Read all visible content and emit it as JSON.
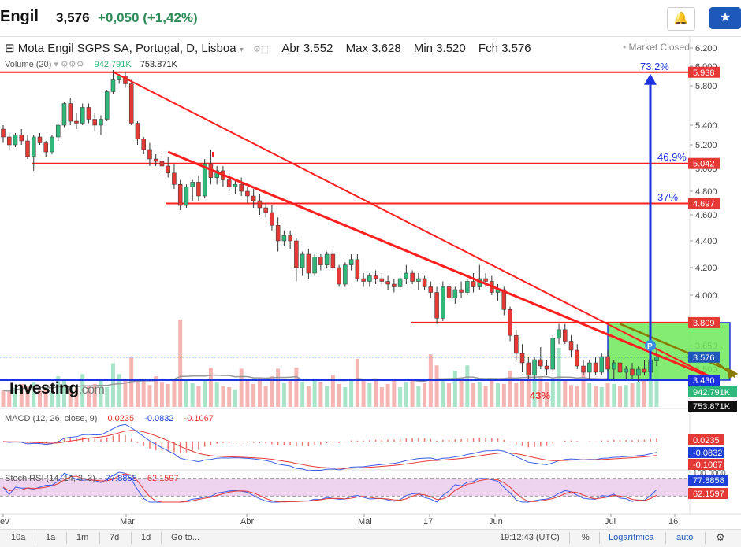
{
  "header": {
    "symbol": "Engil",
    "price": "3,576",
    "change": "+0,050",
    "change_pct": "(+1,42%)"
  },
  "chart_info": {
    "title": "Mota Engil SGPS SA, Portugal, D, Lisboa",
    "open_label": "Abr",
    "open": "3.552",
    "high_label": "Max",
    "high": "3.628",
    "low_label": "Min",
    "low": "3.520",
    "close_label": "Fch",
    "close": "3.576",
    "market_status": "Market Closed",
    "volume_label": "Volume (20)",
    "volume_value": "942.791K",
    "volume_ma": "753.871K"
  },
  "macd": {
    "label": "MACD (12, 26, close, 9)",
    "v1": "0.0235",
    "v2": "-0.0832",
    "v3": "-0.1067"
  },
  "stoch": {
    "label": "Stoch RSI (14, 14, 3, 3)",
    "v1": "77.8858",
    "v2": "62.1597"
  },
  "branding": {
    "logo": "Investing",
    "logo_suffix": ".com"
  },
  "annotations": {
    "pct_73": "73,2%",
    "pct_469": "46,9%",
    "pct_37": "37%",
    "pct_43": "43%",
    "marker": "P"
  },
  "bottom_bar": {
    "timeframes": [
      "10a",
      "1a",
      "1m",
      "7d",
      "1d"
    ],
    "goto": "Go to...",
    "time": "19:12:43 (UTC)",
    "percent": "%",
    "log": "Logarítmica",
    "auto": "auto"
  },
  "colors": {
    "up": "#2fb87a",
    "down": "#e53935",
    "resistance": "#ff1f1f",
    "target": "#1e33e0",
    "box": "#6ee85a",
    "wedge": "#8a7a00"
  },
  "chart_data": {
    "type": "candlestick",
    "x_ticks": [
      "ev",
      "Mar",
      "Abr",
      "Mai",
      "17",
      "Jun",
      "Jul",
      "16"
    ],
    "y_ticks": [
      6.2,
      6.0,
      5.8,
      5.4,
      5.2,
      5.0,
      4.8,
      4.6,
      4.4,
      4.2,
      4.0,
      3.65,
      3.5,
      3.4
    ],
    "ylim": [
      3.29,
      6.2
    ],
    "price_labels": [
      {
        "value": 5.938,
        "text": "5.938",
        "color": "#e53935"
      },
      {
        "value": 5.042,
        "text": "5.042",
        "color": "#e53935"
      },
      {
        "value": 4.697,
        "text": "4.697",
        "color": "#e53935"
      },
      {
        "value": 3.809,
        "text": "3.809",
        "color": "#e53935"
      },
      {
        "value": 3.576,
        "text": "3.576",
        "color": "#1e58b8"
      },
      {
        "value": 3.43,
        "text": "3.430",
        "color": "#1e33e0"
      }
    ],
    "volume_labels": [
      {
        "text": "942.791K",
        "color": "#2fb87a"
      },
      {
        "text": "753.871K",
        "color": "#111111"
      }
    ],
    "macd_labels": [
      {
        "value": 0.0235,
        "text": "0.0235",
        "color": "#e53935"
      },
      {
        "value": -0.0832,
        "text": "-0.0832",
        "color": "#1e40d8"
      },
      {
        "value": -0.1067,
        "text": "-0.1067",
        "color": "#e53935"
      }
    ],
    "stoch_labels": [
      {
        "value": 100,
        "text": "100.0000",
        "color": "#555555"
      },
      {
        "value": 77.8858,
        "text": "77.8858",
        "color": "#1e40d8"
      },
      {
        "value": 62.1597,
        "text": "62.1597",
        "color": "#e53935"
      }
    ],
    "horizontal_lines": [
      5.938,
      5.042,
      4.697,
      3.809,
      3.43
    ],
    "candles_ohlc": [
      [
        5.36,
        5.4,
        5.22,
        5.28
      ],
      [
        5.28,
        5.32,
        5.16,
        5.2
      ],
      [
        5.2,
        5.32,
        5.18,
        5.3
      ],
      [
        5.3,
        5.36,
        5.2,
        5.24
      ],
      [
        5.24,
        5.3,
        5.08,
        5.1
      ],
      [
        5.1,
        5.3,
        4.98,
        5.28
      ],
      [
        5.28,
        5.32,
        5.2,
        5.22
      ],
      [
        5.22,
        5.24,
        5.1,
        5.14
      ],
      [
        5.14,
        5.3,
        5.12,
        5.28
      ],
      [
        5.28,
        5.42,
        5.24,
        5.4
      ],
      [
        5.4,
        5.64,
        5.38,
        5.62
      ],
      [
        5.62,
        5.68,
        5.4,
        5.44
      ],
      [
        5.44,
        5.52,
        5.36,
        5.42
      ],
      [
        5.42,
        5.62,
        5.4,
        5.58
      ],
      [
        5.58,
        5.62,
        5.42,
        5.46
      ],
      [
        5.46,
        5.52,
        5.34,
        5.4
      ],
      [
        5.4,
        5.5,
        5.3,
        5.46
      ],
      [
        5.46,
        5.76,
        5.44,
        5.74
      ],
      [
        5.74,
        5.96,
        5.72,
        5.86
      ],
      [
        5.86,
        5.92,
        5.82,
        5.9
      ],
      [
        5.9,
        5.94,
        5.78,
        5.82
      ],
      [
        5.82,
        5.86,
        5.4,
        5.42
      ],
      [
        5.42,
        5.44,
        5.2,
        5.26
      ],
      [
        5.26,
        5.28,
        5.12,
        5.16
      ],
      [
        5.16,
        5.22,
        5.02,
        5.08
      ],
      [
        5.08,
        5.12,
        5.02,
        5.06
      ],
      [
        5.06,
        5.14,
        4.98,
        5.02
      ],
      [
        5.02,
        5.1,
        4.92,
        4.96
      ],
      [
        4.96,
        5.04,
        4.82,
        4.86
      ],
      [
        4.86,
        4.9,
        4.64,
        4.68
      ],
      [
        4.68,
        4.86,
        4.66,
        4.84
      ],
      [
        4.84,
        4.9,
        4.72,
        4.88
      ],
      [
        4.88,
        4.94,
        4.72,
        4.76
      ],
      [
        4.76,
        5.08,
        4.74,
        5.04
      ],
      [
        5.04,
        5.16,
        4.86,
        4.92
      ],
      [
        4.92,
        5.02,
        4.86,
        4.98
      ],
      [
        4.98,
        5.02,
        4.84,
        4.9
      ],
      [
        4.9,
        4.96,
        4.8,
        4.84
      ],
      [
        4.84,
        4.9,
        4.78,
        4.86
      ],
      [
        4.86,
        4.92,
        4.76,
        4.8
      ],
      [
        4.8,
        4.84,
        4.7,
        4.76
      ],
      [
        4.76,
        4.82,
        4.66,
        4.72
      ],
      [
        4.72,
        4.78,
        4.6,
        4.66
      ],
      [
        4.66,
        4.7,
        4.58,
        4.62
      ],
      [
        4.62,
        4.68,
        4.48,
        4.52
      ],
      [
        4.52,
        4.58,
        4.32,
        4.4
      ],
      [
        4.4,
        4.48,
        4.36,
        4.44
      ],
      [
        4.44,
        4.48,
        4.34,
        4.4
      ],
      [
        4.4,
        4.42,
        4.1,
        4.2
      ],
      [
        4.2,
        4.32,
        4.14,
        4.3
      ],
      [
        4.3,
        4.34,
        4.12,
        4.16
      ],
      [
        4.16,
        4.3,
        4.14,
        4.28
      ],
      [
        4.28,
        4.3,
        4.18,
        4.22
      ],
      [
        4.22,
        4.32,
        4.2,
        4.3
      ],
      [
        4.3,
        4.34,
        4.18,
        4.2
      ],
      [
        4.2,
        4.22,
        4.06,
        4.08
      ],
      [
        4.08,
        4.24,
        4.06,
        4.22
      ],
      [
        4.22,
        4.3,
        4.18,
        4.26
      ],
      [
        4.26,
        4.3,
        4.1,
        4.12
      ],
      [
        4.12,
        4.16,
        4.06,
        4.1
      ],
      [
        4.1,
        4.16,
        4.06,
        4.14
      ],
      [
        4.14,
        4.18,
        4.08,
        4.12
      ],
      [
        4.12,
        4.16,
        4.06,
        4.1
      ],
      [
        4.1,
        4.14,
        4.04,
        4.08
      ],
      [
        4.08,
        4.12,
        4.02,
        4.06
      ],
      [
        4.06,
        4.14,
        4.04,
        4.12
      ],
      [
        4.12,
        4.22,
        4.08,
        4.16
      ],
      [
        4.16,
        4.18,
        4.08,
        4.1
      ],
      [
        4.1,
        4.16,
        4.04,
        4.12
      ],
      [
        4.12,
        4.14,
        4.04,
        4.06
      ],
      [
        4.06,
        4.1,
        3.98,
        4.02
      ],
      [
        4.02,
        4.06,
        3.8,
        3.84
      ],
      [
        3.84,
        4.1,
        3.82,
        4.06
      ],
      [
        4.06,
        4.08,
        3.96,
        3.98
      ],
      [
        3.98,
        4.06,
        3.94,
        4.04
      ],
      [
        4.04,
        4.1,
        3.98,
        4.02
      ],
      [
        4.02,
        4.12,
        4.0,
        4.1
      ],
      [
        4.1,
        4.16,
        4.02,
        4.06
      ],
      [
        4.06,
        4.22,
        4.04,
        4.12
      ],
      [
        4.12,
        4.16,
        4.06,
        4.1
      ],
      [
        4.1,
        4.14,
        4.0,
        4.02
      ],
      [
        4.02,
        4.08,
        3.96,
        4.04
      ],
      [
        4.04,
        4.06,
        3.86,
        3.9
      ],
      [
        3.9,
        3.92,
        3.68,
        3.72
      ],
      [
        3.72,
        3.76,
        3.56,
        3.6
      ],
      [
        3.6,
        3.66,
        3.48,
        3.54
      ],
      [
        3.54,
        3.58,
        3.44,
        3.46
      ],
      [
        3.46,
        3.58,
        3.44,
        3.56
      ],
      [
        3.56,
        3.64,
        3.5,
        3.52
      ],
      [
        3.52,
        3.56,
        3.46,
        3.5
      ],
      [
        3.5,
        3.72,
        3.48,
        3.7
      ],
      [
        3.7,
        3.8,
        3.66,
        3.76
      ],
      [
        3.76,
        3.8,
        3.66,
        3.68
      ],
      [
        3.68,
        3.72,
        3.58,
        3.62
      ],
      [
        3.62,
        3.66,
        3.5,
        3.52
      ],
      [
        3.52,
        3.56,
        3.46,
        3.48
      ],
      [
        3.48,
        3.56,
        3.44,
        3.54
      ],
      [
        3.54,
        3.58,
        3.46,
        3.48
      ],
      [
        3.48,
        3.6,
        3.46,
        3.58
      ],
      [
        3.58,
        3.62,
        3.48,
        3.5
      ],
      [
        3.5,
        3.56,
        3.44,
        3.54
      ],
      [
        3.54,
        3.56,
        3.46,
        3.48
      ],
      [
        3.48,
        3.52,
        3.44,
        3.5
      ],
      [
        3.5,
        3.54,
        3.44,
        3.46
      ],
      [
        3.46,
        3.52,
        3.42,
        3.5
      ],
      [
        3.5,
        3.56,
        3.46,
        3.48
      ],
      [
        3.48,
        3.58,
        3.46,
        3.56
      ],
      [
        3.552,
        3.628,
        3.52,
        3.576
      ]
    ],
    "volume_k": [
      300,
      280,
      350,
      420,
      380,
      460,
      300,
      330,
      290,
      560,
      480,
      300,
      340,
      600,
      380,
      420,
      520,
      360,
      800,
      600,
      500,
      900,
      500,
      520,
      400,
      560,
      460,
      420,
      520,
      1600,
      480,
      440,
      380,
      500,
      720,
      460,
      380,
      360,
      320,
      700,
      480,
      420,
      520,
      380,
      560,
      700,
      440,
      500,
      720,
      460,
      380,
      520,
      460,
      380,
      580,
      420,
      360,
      520,
      880,
      480,
      440,
      520,
      360,
      420,
      520,
      360,
      460,
      520,
      380,
      440,
      960,
      760,
      520,
      440,
      660,
      540,
      760,
      440,
      460,
      380,
      520,
      440,
      420,
      660,
      440,
      520,
      560,
      560,
      540,
      460,
      520,
      1080,
      480,
      400,
      380,
      720,
      440,
      380,
      360,
      440,
      420,
      380,
      400,
      440,
      460,
      480,
      500,
      943
    ],
    "overlays": {
      "resistance_line_1": {
        "from": [
          18,
          5.94
        ],
        "to": [
          117,
          3.43
        ]
      },
      "resistance_line_2": {
        "from": [
          27,
          5.14
        ],
        "to": [
          117,
          3.43
        ]
      },
      "wedge_arrow": {
        "from": [
          101,
          3.8
        ],
        "to": [
          117,
          3.48
        ]
      },
      "target_arrow": {
        "from": 3.43,
        "to": 5.938
      },
      "consolidation_box": {
        "x": [
          99,
          119
        ],
        "y": [
          3.43,
          3.809
        ]
      }
    }
  }
}
